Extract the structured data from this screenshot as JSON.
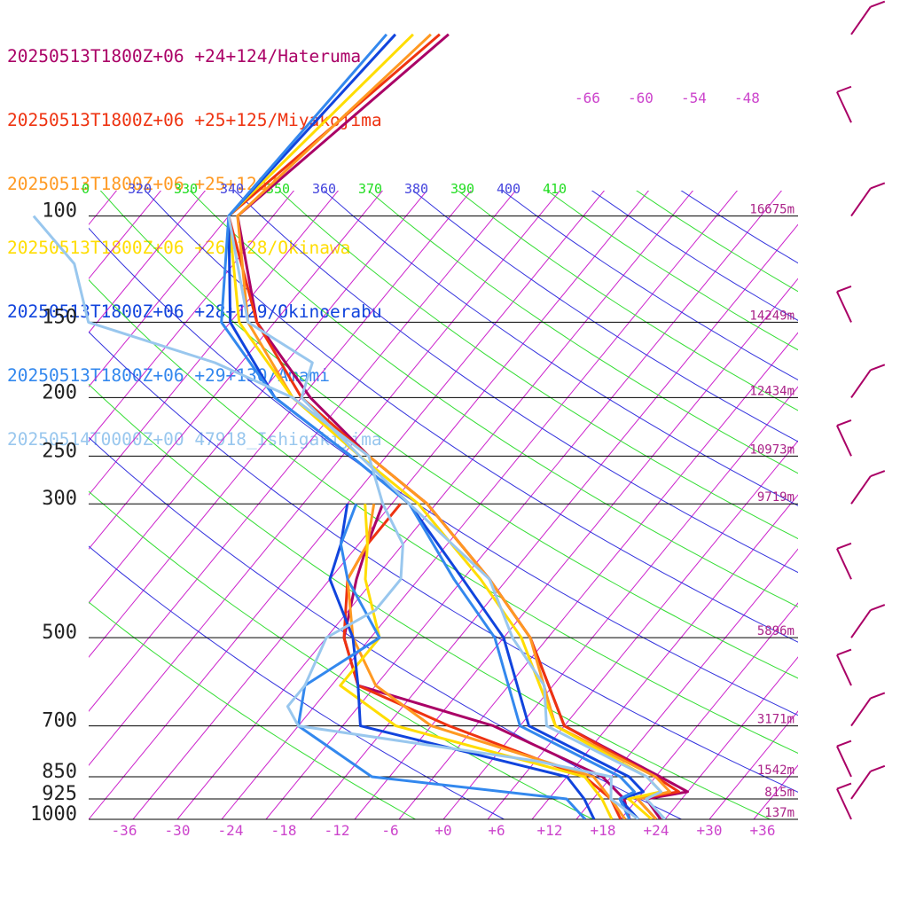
{
  "chart_data": {
    "type": "line",
    "title": "",
    "xlabel": "",
    "ylabel": "",
    "x_ticks": [
      "-36",
      "-30",
      "-24",
      "-18",
      "-12",
      "-6",
      "+0",
      "+6",
      "+12",
      "+18",
      "+24",
      "+30",
      "+36"
    ],
    "x_tick_values": [
      -36,
      -30,
      -24,
      -18,
      -12,
      -6,
      0,
      6,
      12,
      18,
      24,
      30,
      36
    ],
    "xlim": [
      -40,
      40
    ],
    "pressure_levels": [
      {
        "p": 100,
        "label": "100",
        "height": "16675m"
      },
      {
        "p": 150,
        "label": "150",
        "height": "14249m"
      },
      {
        "p": 200,
        "label": "200",
        "height": "12434m"
      },
      {
        "p": 250,
        "label": "250",
        "height": "10973m"
      },
      {
        "p": 300,
        "label": "300",
        "height": "9719m"
      },
      {
        "p": 500,
        "label": "500",
        "height": "5896m"
      },
      {
        "p": 700,
        "label": "700",
        "height": "3171m"
      },
      {
        "p": 850,
        "label": "850",
        "height": "1542m"
      },
      {
        "p": 925,
        "label": "925",
        "height": "815m"
      },
      {
        "p": 1000,
        "label": "1000",
        "height": "137m"
      }
    ],
    "upper_temp_labels": [
      "-66",
      "-60",
      "-54",
      "-48"
    ],
    "theta_labels": [
      {
        "text": "0",
        "color": "#22dd22"
      },
      {
        "text": "320",
        "color": "#4444dd"
      },
      {
        "text": "330",
        "color": "#22dd22"
      },
      {
        "text": "340",
        "color": "#4444dd"
      },
      {
        "text": "350",
        "color": "#22dd22"
      },
      {
        "text": "360",
        "color": "#4444dd"
      },
      {
        "text": "370",
        "color": "#22dd22"
      },
      {
        "text": "380",
        "color": "#4444dd"
      },
      {
        "text": "390",
        "color": "#22dd22"
      },
      {
        "text": "400",
        "color": "#4444dd"
      },
      {
        "text": "410",
        "color": "#22dd22"
      }
    ],
    "colors": {
      "isobar": "#000000",
      "isotherm": "#cc22cc",
      "theta_blue": "#3333dd",
      "theta_green": "#33dd33",
      "height_label": "#aa2288",
      "tick_label": "#cc44cc"
    },
    "series": [
      {
        "name": "20250513T1800Z+06 +24+124/Hateruma",
        "color": "#aa0066",
        "temperature": [
          [
            1000,
            24.5
          ],
          [
            925,
            21
          ],
          [
            900,
            25
          ],
          [
            850,
            20.5
          ],
          [
            700,
            5
          ],
          [
            500,
            -7
          ],
          [
            400,
            -17
          ],
          [
            300,
            -31
          ],
          [
            250,
            -42
          ],
          [
            200,
            -54
          ],
          [
            150,
            -67
          ],
          [
            100,
            -79
          ],
          [
            50,
            -72
          ]
        ],
        "dewpoint": [
          [
            1000,
            21
          ],
          [
            925,
            18.5
          ],
          [
            850,
            14
          ],
          [
            700,
            -3
          ],
          [
            600,
            -22
          ],
          [
            500,
            -28
          ],
          [
            400,
            -32
          ],
          [
            350,
            -34
          ],
          [
            300,
            -36
          ]
        ]
      },
      {
        "name": "20250513T1800Z+06 +25+125/Miyakojima",
        "color": "#ee3311",
        "temperature": [
          [
            1000,
            24
          ],
          [
            925,
            20
          ],
          [
            900,
            24
          ],
          [
            850,
            20
          ],
          [
            700,
            5
          ],
          [
            500,
            -7
          ],
          [
            400,
            -17
          ],
          [
            300,
            -31
          ],
          [
            250,
            -42
          ],
          [
            200,
            -55
          ],
          [
            150,
            -67
          ],
          [
            100,
            -80
          ],
          [
            50,
            -73
          ]
        ],
        "dewpoint": [
          [
            1000,
            20
          ],
          [
            925,
            17
          ],
          [
            850,
            12
          ],
          [
            700,
            -8
          ],
          [
            600,
            -22
          ],
          [
            500,
            -28
          ],
          [
            400,
            -33
          ],
          [
            350,
            -34
          ],
          [
            300,
            -34
          ]
        ]
      },
      {
        "name": "20250513T1800Z+06 +25+126/",
        "color": "#ff9922",
        "temperature": [
          [
            1000,
            24
          ],
          [
            925,
            20
          ],
          [
            900,
            23
          ],
          [
            850,
            20
          ],
          [
            700,
            4
          ],
          [
            500,
            -7
          ],
          [
            400,
            -17
          ],
          [
            300,
            -31
          ],
          [
            250,
            -42
          ],
          [
            200,
            -56
          ],
          [
            150,
            -68
          ],
          [
            100,
            -79
          ],
          [
            50,
            -74
          ]
        ],
        "dewpoint": [
          [
            1000,
            20.5
          ],
          [
            925,
            17
          ],
          [
            850,
            13
          ],
          [
            700,
            -10
          ],
          [
            600,
            -20
          ],
          [
            500,
            -27
          ],
          [
            400,
            -33
          ],
          [
            350,
            -34
          ],
          [
            300,
            -37
          ]
        ]
      },
      {
        "name": "20250513T1800Z+06 +26+128/Okinawa",
        "color": "#ffdd00",
        "temperature": [
          [
            1000,
            23.5
          ],
          [
            925,
            19
          ],
          [
            900,
            22
          ],
          [
            850,
            19
          ],
          [
            700,
            4
          ],
          [
            500,
            -8
          ],
          [
            400,
            -18
          ],
          [
            300,
            -32
          ],
          [
            250,
            -43
          ],
          [
            200,
            -56
          ],
          [
            150,
            -69
          ],
          [
            100,
            -80
          ],
          [
            50,
            -76
          ]
        ],
        "dewpoint": [
          [
            1000,
            19
          ],
          [
            925,
            16
          ],
          [
            850,
            12
          ],
          [
            700,
            -14
          ],
          [
            600,
            -24
          ],
          [
            500,
            -24
          ],
          [
            400,
            -31
          ],
          [
            350,
            -34
          ],
          [
            300,
            -38
          ]
        ]
      },
      {
        "name": "20250513T1800Z+06 +28+129/Okinoerabu",
        "color": "#1144dd",
        "temperature": [
          [
            1000,
            22
          ],
          [
            925,
            18
          ],
          [
            900,
            20
          ],
          [
            850,
            17
          ],
          [
            700,
            1
          ],
          [
            500,
            -10
          ],
          [
            400,
            -20
          ],
          [
            300,
            -33
          ],
          [
            250,
            -44
          ],
          [
            200,
            -58
          ],
          [
            150,
            -70
          ],
          [
            100,
            -80
          ],
          [
            50,
            -78
          ]
        ],
        "dewpoint": [
          [
            1000,
            17
          ],
          [
            925,
            14
          ],
          [
            850,
            10
          ],
          [
            700,
            -18
          ],
          [
            600,
            -22
          ],
          [
            500,
            -27
          ],
          [
            400,
            -35
          ],
          [
            350,
            -37
          ],
          [
            300,
            -40
          ]
        ]
      },
      {
        "name": "20250513T1800Z+06 +29+130/Amami",
        "color": "#3388ee",
        "temperature": [
          [
            1000,
            21
          ],
          [
            925,
            18
          ],
          [
            900,
            19
          ],
          [
            850,
            16
          ],
          [
            700,
            0
          ],
          [
            500,
            -11
          ],
          [
            400,
            -21
          ],
          [
            300,
            -33
          ],
          [
            250,
            -44
          ],
          [
            200,
            -58
          ],
          [
            150,
            -71
          ],
          [
            100,
            -80
          ],
          [
            50,
            -79
          ]
        ],
        "dewpoint": [
          [
            1000,
            16
          ],
          [
            925,
            12
          ],
          [
            850,
            -12
          ],
          [
            700,
            -25
          ],
          [
            600,
            -28
          ],
          [
            500,
            -24
          ],
          [
            400,
            -33
          ],
          [
            350,
            -37
          ],
          [
            300,
            -39
          ]
        ]
      },
      {
        "name": "20250514T0000Z+00 47918_Ishigakijima",
        "color": "#99c7ee",
        "temperature": [
          [
            1000,
            25
          ],
          [
            925,
            21
          ],
          [
            900,
            22
          ],
          [
            850,
            19
          ],
          [
            800,
            14
          ],
          [
            700,
            3
          ],
          [
            600,
            -1
          ],
          [
            500,
            -9
          ],
          [
            400,
            -17
          ],
          [
            300,
            -33
          ],
          [
            250,
            -43
          ],
          [
            200,
            -55
          ],
          [
            175,
            -57
          ],
          [
            150,
            -68
          ],
          [
            100,
            -80
          ]
        ],
        "dewpoint": [
          [
            1000,
            22
          ],
          [
            925,
            17
          ],
          [
            850,
            15
          ],
          [
            800,
            5
          ],
          [
            700,
            -25
          ],
          [
            650,
            -28
          ],
          [
            600,
            -28
          ],
          [
            500,
            -30
          ],
          [
            450,
            -27
          ],
          [
            400,
            -27
          ],
          [
            350,
            -30
          ],
          [
            300,
            -36
          ],
          [
            250,
            -42
          ],
          [
            200,
            -56
          ],
          [
            175,
            -68
          ],
          [
            150,
            -86
          ],
          [
            120,
            -93
          ],
          [
            100,
            -102
          ]
        ]
      }
    ],
    "wind_barbs": [
      {
        "p": 50,
        "color": "#aa0066"
      },
      {
        "p": 70,
        "color": "#aa0066"
      },
      {
        "p": 100,
        "color": "#aa0066"
      },
      {
        "p": 150,
        "color": "#aa0066"
      },
      {
        "p": 200,
        "color": "#aa0066"
      },
      {
        "p": 250,
        "color": "#aa0066"
      },
      {
        "p": 300,
        "color": "#aa0066"
      },
      {
        "p": 400,
        "color": "#aa0066"
      },
      {
        "p": 500,
        "color": "#aa0066"
      },
      {
        "p": 600,
        "color": "#aa0066"
      },
      {
        "p": 700,
        "color": "#aa0066"
      },
      {
        "p": 850,
        "color": "#aa0066"
      },
      {
        "p": 925,
        "color": "#aa0066"
      },
      {
        "p": 1000,
        "color": "#aa0066"
      }
    ]
  }
}
